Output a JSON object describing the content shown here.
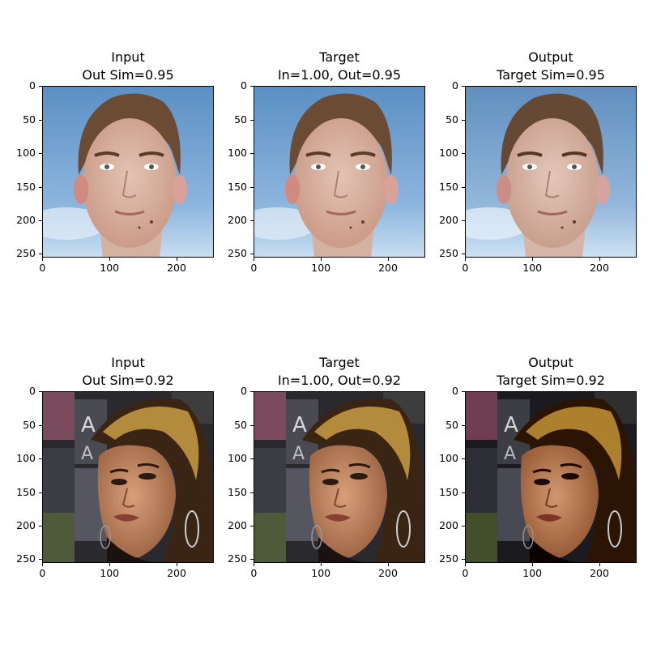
{
  "rows": [
    {
      "panels": [
        {
          "title1": "Input",
          "title2": "Out Sim=0.95"
        },
        {
          "title1": "Target",
          "title2": "In=1.00, Out=0.95"
        },
        {
          "title1": "Output",
          "title2": "Target Sim=0.95"
        }
      ]
    },
    {
      "panels": [
        {
          "title1": "Input",
          "title2": "Out Sim=0.92"
        },
        {
          "title1": "Target",
          "title2": "In=1.00, Out=0.92"
        },
        {
          "title1": "Output",
          "title2": "Target Sim=0.92"
        }
      ]
    }
  ],
  "axes": {
    "y_ticks": [
      "0",
      "50",
      "100",
      "150",
      "200",
      "250"
    ],
    "x_ticks": [
      "0",
      "100",
      "200"
    ]
  }
}
